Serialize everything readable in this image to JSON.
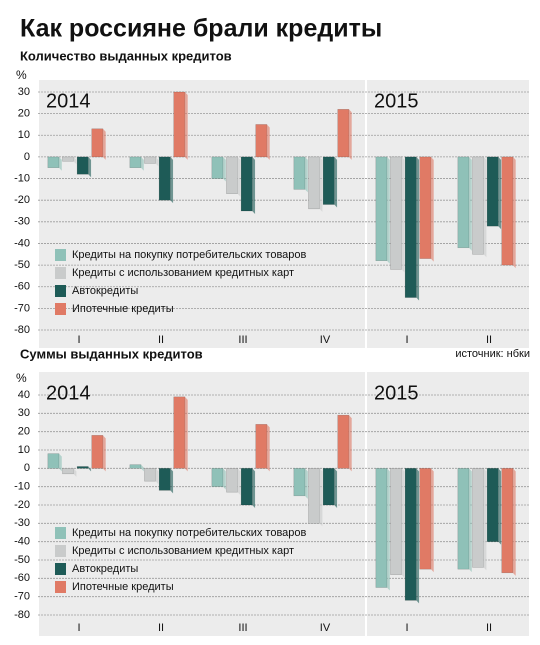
{
  "title": "Как россияне брали кредиты",
  "chart_data": [
    {
      "type": "bar",
      "title": "Количество выданных кредитов",
      "ylabel": "%",
      "source": "источник: нбки",
      "panels": [
        {
          "label": "2014",
          "categories": [
            "I",
            "II",
            "III",
            "IV"
          ]
        },
        {
          "label": "2015",
          "categories": [
            "I",
            "II"
          ]
        }
      ],
      "ylim": [
        -80,
        30
      ],
      "yticks": [
        -80,
        -70,
        -60,
        -50,
        -40,
        -30,
        -20,
        -10,
        0,
        10,
        20,
        30
      ],
      "grid": true,
      "series": [
        {
          "name": "Кредиты на покупку потребительских товаров",
          "color": "#8fc1b8",
          "values": [
            -5,
            -5,
            -10,
            -15,
            -48,
            -42
          ]
        },
        {
          "name": "Кредиты с использованием кредитных карт",
          "color": "#c9cbcb",
          "values": [
            -2,
            -3,
            -17,
            -24,
            -52,
            -45
          ]
        },
        {
          "name": "Автокредиты",
          "color": "#1e5b57",
          "values": [
            -8,
            -20,
            -25,
            -22,
            -65,
            -32
          ]
        },
        {
          "name": "Ипотечные кредиты",
          "color": "#e07a65",
          "values": [
            13,
            30,
            15,
            22,
            -47,
            -50
          ]
        }
      ]
    },
    {
      "type": "bar",
      "title": "Суммы выданных кредитов",
      "ylabel": "%",
      "panels": [
        {
          "label": "2014",
          "categories": [
            "I",
            "II",
            "III",
            "IV"
          ]
        },
        {
          "label": "2015",
          "categories": [
            "I",
            "II"
          ]
        }
      ],
      "ylim": [
        -80,
        40
      ],
      "yticks": [
        -80,
        -70,
        -60,
        -50,
        -40,
        -30,
        -20,
        -10,
        0,
        10,
        20,
        30,
        40
      ],
      "grid": true,
      "series": [
        {
          "name": "Кредиты на покупку потребительских товаров",
          "color": "#8fc1b8",
          "values": [
            8,
            2,
            -10,
            -15,
            -65,
            -55
          ]
        },
        {
          "name": "Кредиты с использованием кредитных карт",
          "color": "#c9cbcb",
          "values": [
            -3,
            -7,
            -13,
            -30,
            -58,
            -54
          ]
        },
        {
          "name": "Автокредиты",
          "color": "#1e5b57",
          "values": [
            1,
            -12,
            -20,
            -20,
            -72,
            -40
          ]
        },
        {
          "name": "Ипотечные кредиты",
          "color": "#e07a65",
          "values": [
            18,
            39,
            24,
            29,
            -55,
            -57
          ]
        }
      ]
    }
  ]
}
